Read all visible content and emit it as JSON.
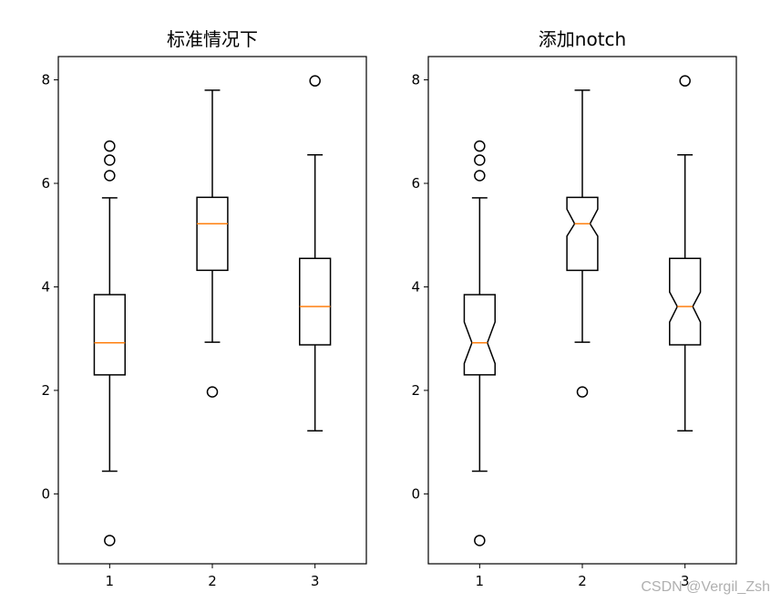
{
  "chart_data": [
    {
      "type": "box",
      "title": "标准情况下",
      "notch": false,
      "categories": [
        "1",
        "2",
        "3"
      ],
      "yticks": [
        "0",
        "2",
        "4",
        "6",
        "8"
      ],
      "ylim": [
        -1.35,
        8.45
      ],
      "boxes": [
        {
          "whislo": 0.44,
          "q1": 2.3,
          "med": 2.92,
          "q3": 3.85,
          "whishi": 5.72,
          "fliers": [
            6.72,
            6.45,
            6.15,
            -0.9
          ]
        },
        {
          "whislo": 2.93,
          "q1": 4.32,
          "med": 5.22,
          "q3": 5.73,
          "whishi": 7.8,
          "fliers": [
            1.97
          ]
        },
        {
          "whislo": 1.22,
          "q1": 2.88,
          "med": 3.62,
          "q3": 4.55,
          "whishi": 6.55,
          "fliers": [
            7.98
          ]
        }
      ]
    },
    {
      "type": "box",
      "title": "添加notch",
      "notch": true,
      "categories": [
        "1",
        "2",
        "3"
      ],
      "yticks": [
        "0",
        "2",
        "4",
        "6",
        "8"
      ],
      "ylim": [
        -1.35,
        8.45
      ],
      "boxes": [
        {
          "whislo": 0.44,
          "q1": 2.3,
          "med": 2.92,
          "q3": 3.85,
          "whishi": 5.72,
          "notchlo": 2.52,
          "notchhi": 3.32,
          "fliers": [
            6.72,
            6.45,
            6.15,
            -0.9
          ]
        },
        {
          "whislo": 2.93,
          "q1": 4.32,
          "med": 5.22,
          "q3": 5.73,
          "whishi": 7.8,
          "notchlo": 4.98,
          "notchhi": 5.5,
          "fliers": [
            1.97
          ]
        },
        {
          "whislo": 1.22,
          "q1": 2.88,
          "med": 3.62,
          "q3": 4.55,
          "whishi": 6.55,
          "notchlo": 3.32,
          "notchhi": 3.9,
          "fliers": [
            7.98
          ]
        }
      ]
    }
  ],
  "colors": {
    "box": "#000000",
    "median": "#ff7f0e",
    "flier": "#000000"
  },
  "watermark": "CSDN @Vergil_Zsh"
}
